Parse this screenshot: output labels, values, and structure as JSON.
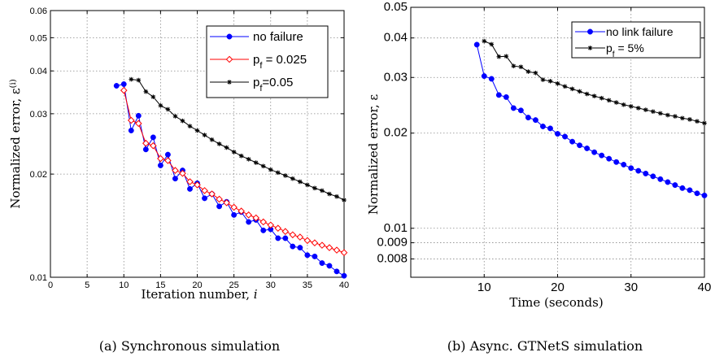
{
  "chart_data": [
    {
      "type": "line",
      "ylabel": "Normalized error, ε",
      "ylabel_sup": "(i)",
      "xlabel": "Iteration number, ",
      "xlabel_var": "i",
      "yscale": "log",
      "xlim": [
        0,
        40
      ],
      "ylim": [
        0.01,
        0.06
      ],
      "xticks": [
        0,
        5,
        10,
        15,
        20,
        25,
        30,
        35,
        40
      ],
      "xtick_labels": [
        "0",
        "5",
        "10",
        "15",
        "20",
        "25",
        "30",
        "35",
        "40"
      ],
      "yticks": [
        0.01,
        0.02,
        0.03,
        0.04,
        0.05,
        0.06
      ],
      "ytick_labels": [
        "0.01",
        "0.02",
        "0.03",
        "0.04",
        "0.05",
        "0.06"
      ],
      "grid": true,
      "legend_position": "top-right",
      "caption": "(a) Synchronous simulation",
      "series": [
        {
          "name": "no failure",
          "color": "#0000ff",
          "marker": "dot",
          "x": [
            9,
            10,
            11,
            12,
            13,
            14,
            15,
            16,
            17,
            18,
            19,
            20,
            21,
            22,
            23,
            24,
            25,
            26,
            27,
            28,
            29,
            30,
            31,
            32,
            33,
            34,
            35,
            36,
            37,
            38,
            39,
            40
          ],
          "y": [
            0.0362,
            0.0366,
            0.0268,
            0.0296,
            0.0236,
            0.0256,
            0.0212,
            0.0228,
            0.0194,
            0.0205,
            0.0181,
            0.0188,
            0.017,
            0.0175,
            0.0161,
            0.0166,
            0.0152,
            0.0155,
            0.0145,
            0.0147,
            0.0137,
            0.0138,
            0.013,
            0.013,
            0.0123,
            0.0122,
            0.0116,
            0.0115,
            0.011,
            0.0108,
            0.0104,
            0.0101
          ]
        },
        {
          "name": "p",
          "name_sub": "f",
          "name_rest": " = 0.025",
          "color": "#ff0000",
          "marker": "diamond",
          "x": [
            10,
            11,
            12,
            13,
            14,
            15,
            16,
            17,
            18,
            19,
            20,
            21,
            22,
            23,
            24,
            25,
            26,
            27,
            28,
            29,
            30,
            31,
            32,
            33,
            34,
            35,
            36,
            37,
            38,
            39,
            40
          ],
          "y": [
            0.0351,
            0.0287,
            0.0281,
            0.0246,
            0.0242,
            0.0222,
            0.0219,
            0.0205,
            0.0201,
            0.019,
            0.0186,
            0.0179,
            0.0175,
            0.0169,
            0.0165,
            0.016,
            0.0156,
            0.0152,
            0.0149,
            0.0145,
            0.0142,
            0.0139,
            0.0136,
            0.0133,
            0.0131,
            0.0128,
            0.0126,
            0.0124,
            0.0122,
            0.012,
            0.0118
          ]
        },
        {
          "name": "p",
          "name_sub": "f",
          "name_rest": "=0.05",
          "color": "#000000",
          "marker": "star",
          "x": [
            11,
            12,
            13,
            14,
            15,
            16,
            17,
            18,
            19,
            20,
            21,
            22,
            23,
            24,
            25,
            26,
            27,
            28,
            29,
            30,
            31,
            32,
            33,
            34,
            35,
            36,
            37,
            38,
            39,
            40
          ],
          "y": [
            0.0378,
            0.0376,
            0.0348,
            0.0336,
            0.0317,
            0.0309,
            0.0295,
            0.0286,
            0.0276,
            0.0268,
            0.026,
            0.0252,
            0.0245,
            0.0239,
            0.0232,
            0.0226,
            0.0221,
            0.0216,
            0.0211,
            0.0206,
            0.0202,
            0.0198,
            0.0194,
            0.019,
            0.0186,
            0.0182,
            0.0179,
            0.0175,
            0.0172,
            0.0168
          ]
        }
      ]
    },
    {
      "type": "line",
      "ylabel": "Normalized error, ε",
      "xlabel": "Time (seconds)",
      "yscale": "log",
      "xlim": [
        0,
        40
      ],
      "ylim": [
        0.007,
        0.05
      ],
      "xticks": [
        10,
        20,
        30,
        40
      ],
      "xtick_labels": [
        "10",
        "20",
        "30",
        "40"
      ],
      "yticks": [
        0.008,
        0.009,
        0.01,
        0.02,
        0.03,
        0.04,
        0.05
      ],
      "ytick_labels": [
        "0.008",
        "0.009",
        "0.01",
        "0.02",
        "0.03",
        "0.04",
        "0.05"
      ],
      "grid": true,
      "legend_position": "top-right",
      "caption": "(b) Async. GTNetS simulation",
      "series": [
        {
          "name": "no link failure",
          "color": "#0000ff",
          "marker": "dot",
          "x": [
            9,
            10,
            11,
            12,
            13,
            14,
            15,
            16,
            17,
            18,
            19,
            20,
            21,
            22,
            23,
            24,
            25,
            26,
            27,
            28,
            29,
            30,
            31,
            32,
            33,
            34,
            35,
            36,
            37,
            38,
            39,
            40
          ],
          "y": [
            0.0381,
            0.0303,
            0.0297,
            0.0264,
            0.026,
            0.024,
            0.0236,
            0.0224,
            0.022,
            0.021,
            0.0207,
            0.0199,
            0.0195,
            0.0188,
            0.0183,
            0.0179,
            0.0174,
            0.017,
            0.0166,
            0.0162,
            0.0159,
            0.0155,
            0.0152,
            0.0149,
            0.0146,
            0.0143,
            0.014,
            0.0137,
            0.0134,
            0.0132,
            0.0129,
            0.0127
          ]
        },
        {
          "name": "p",
          "name_sub": "f",
          "name_rest": " = 5%",
          "color": "#000000",
          "marker": "star",
          "x": [
            10,
            11,
            12,
            13,
            14,
            15,
            16,
            17,
            18,
            19,
            20,
            21,
            22,
            23,
            24,
            25,
            26,
            27,
            28,
            29,
            30,
            31,
            32,
            33,
            34,
            35,
            36,
            37,
            38,
            39,
            40
          ],
          "y": [
            0.0391,
            0.0382,
            0.0349,
            0.035,
            0.0326,
            0.0324,
            0.0313,
            0.031,
            0.0295,
            0.0292,
            0.0287,
            0.0281,
            0.0276,
            0.0271,
            0.0266,
            0.0262,
            0.0258,
            0.0254,
            0.025,
            0.0246,
            0.0243,
            0.024,
            0.0237,
            0.0234,
            0.0231,
            0.0228,
            0.0226,
            0.0223,
            0.0221,
            0.0218,
            0.0215
          ]
        }
      ]
    }
  ]
}
